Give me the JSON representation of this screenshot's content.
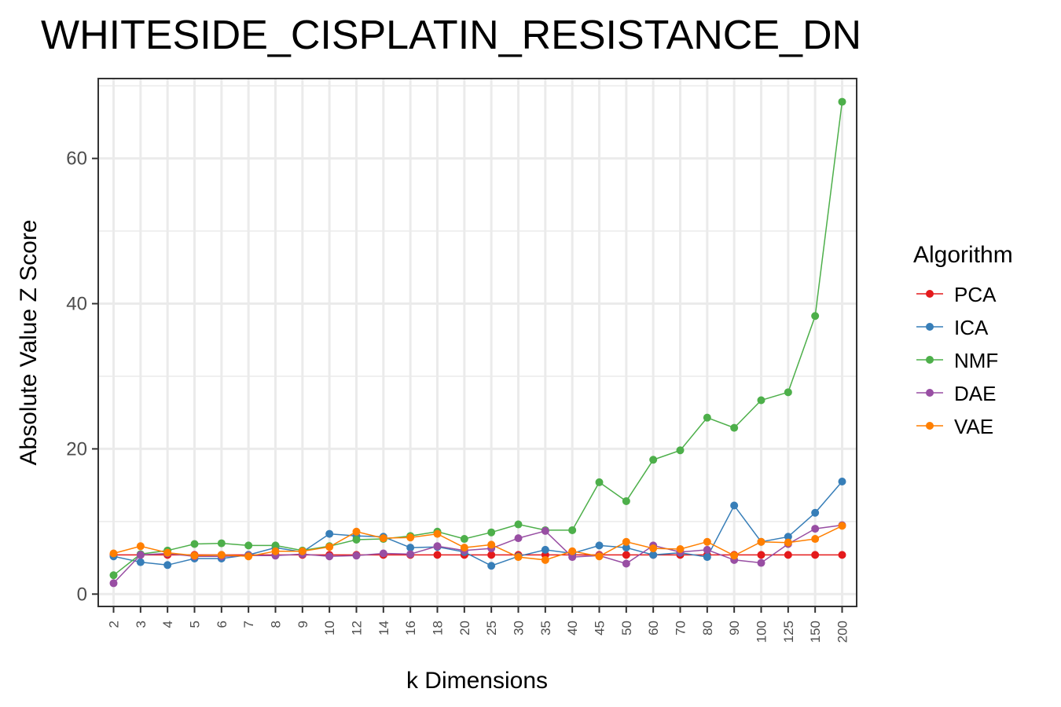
{
  "chart_data": {
    "type": "line",
    "title": "WHITESIDE_CISPLATIN_RESISTANCE_DN",
    "xlabel": "k Dimensions",
    "ylabel": "Absolute Value Z Score",
    "categories": [
      "2",
      "3",
      "4",
      "5",
      "6",
      "7",
      "8",
      "9",
      "10",
      "12",
      "14",
      "16",
      "18",
      "20",
      "25",
      "30",
      "35",
      "40",
      "45",
      "50",
      "60",
      "70",
      "80",
      "90",
      "100",
      "125",
      "150",
      "200"
    ],
    "ylim": [
      -1.7,
      71
    ],
    "yticks": [
      0,
      20,
      40,
      60
    ],
    "grid": true,
    "legend": {
      "title": "Algorithm",
      "position": "right"
    },
    "series": [
      {
        "name": "PCA",
        "color": "#e41a1c",
        "values": [
          5.4,
          5.4,
          5.4,
          5.4,
          5.4,
          5.4,
          5.4,
          5.4,
          5.4,
          5.4,
          5.4,
          5.4,
          5.4,
          5.4,
          5.4,
          5.4,
          5.4,
          5.4,
          5.4,
          5.4,
          5.4,
          5.4,
          5.4,
          5.4,
          5.4,
          5.4,
          5.4,
          5.4
        ]
      },
      {
        "name": "ICA",
        "color": "#377eb8",
        "values": [
          5.2,
          4.4,
          4.0,
          4.9,
          4.9,
          5.4,
          6.4,
          5.8,
          8.3,
          8.0,
          7.9,
          6.4,
          6.5,
          5.8,
          3.9,
          5.2,
          6.1,
          5.6,
          6.7,
          6.4,
          5.4,
          5.7,
          5.1,
          12.2,
          7.2,
          7.9,
          11.2,
          15.5
        ]
      },
      {
        "name": "NMF",
        "color": "#4daf4a",
        "values": [
          2.6,
          5.5,
          6.0,
          6.9,
          7.0,
          6.7,
          6.7,
          6.0,
          6.6,
          7.5,
          7.6,
          8.0,
          8.6,
          7.6,
          8.5,
          9.6,
          8.8,
          8.8,
          15.4,
          12.8,
          18.5,
          19.8,
          24.3,
          22.9,
          26.7,
          27.8,
          38.3,
          67.8
        ]
      },
      {
        "name": "DAE",
        "color": "#984ea3",
        "values": [
          1.5,
          5.4,
          5.6,
          5.2,
          5.2,
          5.3,
          5.3,
          5.5,
          5.2,
          5.3,
          5.6,
          5.5,
          6.6,
          6.0,
          6.3,
          7.7,
          8.7,
          5.1,
          5.3,
          4.2,
          6.7,
          5.8,
          6.1,
          4.7,
          4.3,
          6.9,
          9.0,
          9.5
        ]
      },
      {
        "name": "VAE",
        "color": "#ff7f00",
        "values": [
          5.6,
          6.6,
          5.7,
          5.3,
          5.4,
          5.2,
          5.9,
          5.9,
          6.5,
          8.6,
          7.7,
          7.8,
          8.3,
          6.4,
          6.8,
          5.1,
          4.7,
          5.9,
          5.2,
          7.2,
          6.3,
          6.2,
          7.2,
          5.3,
          7.2,
          7.1,
          7.6,
          9.4
        ]
      }
    ]
  }
}
